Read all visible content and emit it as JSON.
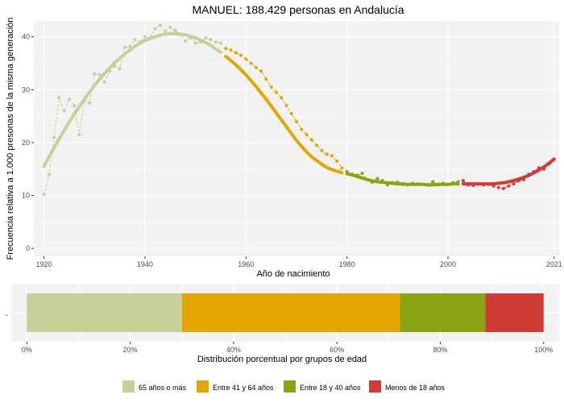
{
  "title": "MANUEL: 188.429 personas en Andalucía",
  "colors": {
    "g65": "#c8cf9a",
    "g41": "#e3a600",
    "g18": "#8aa312",
    "g0": "#d13b35",
    "panel_bg": "#f2f2f2",
    "grid": "#ffffff"
  },
  "legend": {
    "items": [
      {
        "label": "65 años o más",
        "color": "#c8cf9a"
      },
      {
        "label": "Entre 41 y 64 años",
        "color": "#e3a600"
      },
      {
        "label": "Entre 18 y 40 años",
        "color": "#8aa312"
      },
      {
        "label": "Menos de 18 años",
        "color": "#d13b35"
      }
    ]
  },
  "chart_data": [
    {
      "type": "line",
      "title": "MANUEL: 188.429 personas en Andalucía",
      "xlabel": "Año de nacimiento",
      "ylabel": "Frecuencia relativa a 1.000 presonas de la misma generación",
      "xlim": [
        1918,
        2022
      ],
      "ylim": [
        -1.5,
        43
      ],
      "x_ticks": [
        "1920",
        "1940",
        "1960",
        "1980",
        "2000",
        "2021"
      ],
      "x_tick_values": [
        1920,
        1940,
        1960,
        1980,
        2000,
        2021
      ],
      "y_ticks": [
        "0",
        "10",
        "20",
        "30",
        "40"
      ],
      "y_tick_values": [
        0,
        10,
        20,
        30,
        40
      ],
      "grid": true,
      "observed": {
        "x": [
          1920,
          1921,
          1922,
          1923,
          1924,
          1925,
          1926,
          1927,
          1928,
          1929,
          1930,
          1931,
          1932,
          1933,
          1934,
          1935,
          1936,
          1937,
          1938,
          1939,
          1940,
          1941,
          1942,
          1943,
          1944,
          1945,
          1946,
          1947,
          1948,
          1949,
          1950,
          1951,
          1952,
          1953,
          1954,
          1955,
          1956,
          1957,
          1958,
          1959,
          1960,
          1961,
          1962,
          1963,
          1964,
          1965,
          1966,
          1967,
          1968,
          1969,
          1970,
          1971,
          1972,
          1973,
          1974,
          1975,
          1976,
          1977,
          1978,
          1979,
          1980,
          1981,
          1982,
          1983,
          1984,
          1985,
          1986,
          1987,
          1988,
          1989,
          1990,
          1991,
          1992,
          1993,
          1994,
          1995,
          1996,
          1997,
          1998,
          1999,
          2000,
          2001,
          2002,
          2003,
          2004,
          2005,
          2006,
          2007,
          2008,
          2009,
          2010,
          2011,
          2012,
          2013,
          2014,
          2015,
          2016,
          2017,
          2018,
          2019,
          2020,
          2021
        ],
        "y": [
          10.2,
          14.0,
          21.0,
          28.5,
          26.0,
          28.2,
          27.0,
          21.5,
          28.0,
          27.5,
          33.0,
          32.8,
          31.5,
          33.5,
          34.5,
          34.0,
          38.0,
          38.2,
          39.5,
          39.0,
          40.0,
          39.8,
          41.5,
          42.2,
          41.0,
          41.8,
          41.2,
          40.5,
          39.2,
          39.8,
          38.8,
          39.0,
          39.8,
          39.5,
          39.0,
          38.8,
          37.8,
          37.5,
          37.0,
          36.5,
          35.8,
          35.0,
          34.2,
          33.5,
          32.0,
          30.5,
          29.5,
          28.5,
          27.0,
          25.5,
          24.0,
          22.5,
          21.5,
          20.5,
          19.5,
          18.5,
          17.8,
          17.5,
          16.5,
          15.2,
          14.5,
          14.0,
          13.8,
          14.2,
          13.0,
          12.5,
          13.2,
          12.8,
          12.0,
          12.4,
          12.5,
          12.1,
          12.0,
          12.3,
          12.2,
          12.1,
          12.0,
          12.6,
          12.0,
          12.3,
          12.1,
          12.4,
          12.6,
          12.8,
          12.0,
          11.9,
          12.2,
          12.0,
          12.1,
          11.8,
          11.5,
          11.3,
          11.8,
          12.2,
          12.8,
          13.0,
          14.0,
          14.5,
          15.2,
          15.0,
          16.0,
          16.8
        ]
      },
      "smooth": {
        "x": [
          1920,
          1921,
          1922,
          1923,
          1924,
          1925,
          1926,
          1927,
          1928,
          1929,
          1930,
          1931,
          1932,
          1933,
          1934,
          1935,
          1936,
          1937,
          1938,
          1939,
          1940,
          1941,
          1942,
          1943,
          1944,
          1945,
          1946,
          1947,
          1948,
          1949,
          1950,
          1951,
          1952,
          1953,
          1954,
          1955,
          1956,
          1957,
          1958,
          1959,
          1960,
          1961,
          1962,
          1963,
          1964,
          1965,
          1966,
          1967,
          1968,
          1969,
          1970,
          1971,
          1972,
          1973,
          1974,
          1975,
          1976,
          1977,
          1978,
          1979,
          1980,
          1981,
          1982,
          1983,
          1984,
          1985,
          1986,
          1987,
          1988,
          1989,
          1990,
          1991,
          1992,
          1993,
          1994,
          1995,
          1996,
          1997,
          1998,
          1999,
          2000,
          2001,
          2002,
          2003,
          2004,
          2005,
          2006,
          2007,
          2008,
          2009,
          2010,
          2011,
          2012,
          2013,
          2014,
          2015,
          2016,
          2017,
          2018,
          2019,
          2020,
          2021
        ],
        "y": [
          15.5,
          17.3,
          19.0,
          20.7,
          22.3,
          23.9,
          25.4,
          26.8,
          28.2,
          29.5,
          30.8,
          32.0,
          33.1,
          34.1,
          35.1,
          35.9,
          36.8,
          37.5,
          38.2,
          38.8,
          39.3,
          39.7,
          40.0,
          40.3,
          40.5,
          40.6,
          40.6,
          40.5,
          40.4,
          40.1,
          39.8,
          39.4,
          38.9,
          38.4,
          37.7,
          37.1,
          36.3,
          35.5,
          34.7,
          33.8,
          32.8,
          31.7,
          30.6,
          29.4,
          28.2,
          26.9,
          25.6,
          24.3,
          23.0,
          21.7,
          20.4,
          19.3,
          18.2,
          17.3,
          16.6,
          15.9,
          15.3,
          14.9,
          14.6,
          14.3,
          14.1,
          13.9,
          13.6,
          13.3,
          13.0,
          12.8,
          12.6,
          12.5,
          12.4,
          12.3,
          12.2,
          12.2,
          12.1,
          12.1,
          12.1,
          12.1,
          12.0,
          12.0,
          12.1,
          12.1,
          12.1,
          12.2,
          12.2,
          12.2,
          12.2,
          12.2,
          12.2,
          12.2,
          12.2,
          12.2,
          12.3,
          12.4,
          12.6,
          12.8,
          13.1,
          13.4,
          13.8,
          14.3,
          14.8,
          15.4,
          16.1,
          16.9
        ]
      },
      "segments": [
        {
          "from": 1920,
          "to": 1955,
          "color": "#c8cf9a"
        },
        {
          "from": 1956,
          "to": 1979,
          "color": "#e3a600"
        },
        {
          "from": 1980,
          "to": 2002,
          "color": "#8aa312"
        },
        {
          "from": 2003,
          "to": 2021,
          "color": "#d13b35"
        }
      ]
    },
    {
      "type": "bar",
      "orientation": "horizontal-stacked",
      "xlabel": "Distribución porcentual por grupos de edad",
      "y_tick": "-",
      "xlim": [
        -3,
        103
      ],
      "x_ticks": [
        "0%",
        "20%",
        "40%",
        "60%",
        "80%",
        "100%"
      ],
      "x_tick_values": [
        0,
        20,
        40,
        60,
        80,
        100
      ],
      "series": [
        {
          "name": "65 años o más",
          "value": 30.0,
          "color": "#c8cf9a"
        },
        {
          "name": "Entre 41 y 64 años",
          "value": 42.2,
          "color": "#e3a600"
        },
        {
          "name": "Entre 18 y 40 años",
          "value": 16.5,
          "color": "#8aa312"
        },
        {
          "name": "Menos de 18 años",
          "value": 11.3,
          "color": "#d13b35"
        }
      ]
    }
  ]
}
